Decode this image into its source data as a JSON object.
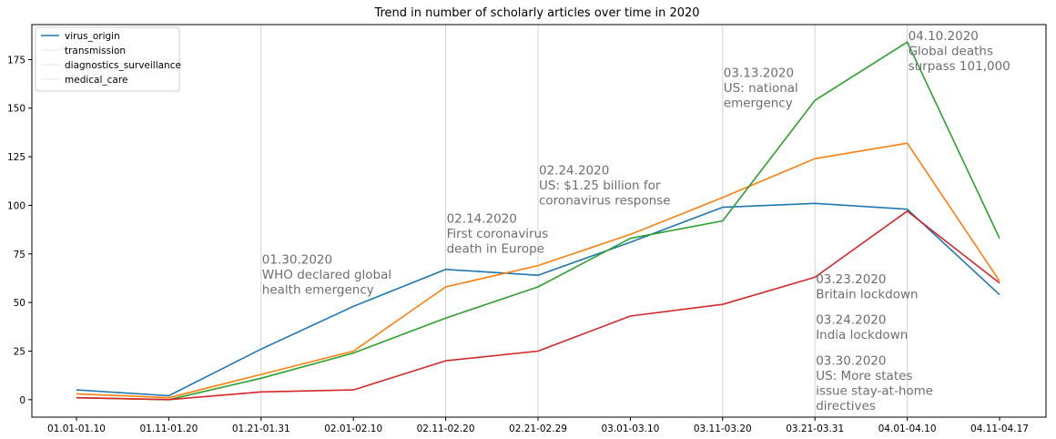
{
  "chart_data": {
    "type": "line",
    "title": "Trend in number of scholarly articles over time in 2020",
    "xlabel": "",
    "ylabel": "",
    "categories": [
      "01.01-01.10",
      "01.11-01.20",
      "01.21-01.31",
      "02.01-02.10",
      "02.11-02.20",
      "02.21-02.29",
      "03.01-03.10",
      "03.11-03.20",
      "03.21-03.31",
      "04.01-04.10",
      "04.11-04.17"
    ],
    "ylim": [
      -9,
      193
    ],
    "yticks": [
      0,
      25,
      50,
      75,
      100,
      125,
      150,
      175
    ],
    "grid": "vertical lines at annotated periods",
    "legend_position": "top-left",
    "series": [
      {
        "name": "virus_origin",
        "color": "#1f77b4",
        "values": [
          5,
          2,
          26,
          48,
          67,
          64,
          81,
          99,
          101,
          98,
          54
        ]
      },
      {
        "name": "transmission",
        "color": "#ff7f0e",
        "values": [
          3,
          1,
          13,
          25,
          58,
          69,
          85,
          104,
          124,
          132,
          61
        ]
      },
      {
        "name": "diagnostics_surveillance",
        "color": "#2ca02c",
        "values": [
          1,
          0,
          11,
          24,
          42,
          58,
          83,
          92,
          154,
          184,
          83
        ]
      },
      {
        "name": "medical_care",
        "color": "#d62728",
        "values": [
          1,
          0,
          4,
          5,
          20,
          25,
          43,
          49,
          63,
          97,
          60
        ]
      }
    ],
    "vlines": [
      "01.21-01.31",
      "02.11-02.20",
      "02.21-02.29",
      "03.11-03.20",
      "03.21-03.31",
      "04.01-04.10"
    ],
    "annotations": [
      {
        "x": "01.21-01.31",
        "y": 70,
        "lines": [
          "01.30.2020",
          "WHO declared global",
          "health emergency"
        ]
      },
      {
        "x": "02.11-02.20",
        "y": 91,
        "lines": [
          "02.14.2020",
          "First coronavirus",
          "death in Europe"
        ]
      },
      {
        "x": "02.21-02.29",
        "y": 116,
        "lines": [
          "02.24.2020",
          "US: $1.25 billion for",
          "coronavirus response"
        ]
      },
      {
        "x": "03.11-03.20",
        "y": 166,
        "lines": [
          "03.13.2020",
          "US: national",
          "emergency"
        ]
      },
      {
        "x": "03.21-03.31",
        "y": 60,
        "lines": [
          "03.23.2020",
          "Britain lockdown"
        ]
      },
      {
        "x": "03.21-03.31",
        "y": 39,
        "lines": [
          "03.24.2020",
          "India lockdown"
        ]
      },
      {
        "x": "03.21-03.31",
        "y": 18,
        "lines": [
          "03.30.2020",
          "US: More states",
          "issue stay-at-home",
          "directives"
        ]
      },
      {
        "x": "04.01-04.10",
        "y": 185,
        "lines": [
          "04.10.2020",
          "Global deaths",
          "surpass 101,000"
        ]
      }
    ]
  }
}
